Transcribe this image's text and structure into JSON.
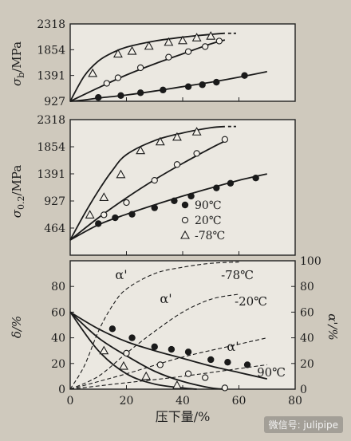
{
  "chart_data": [
    {
      "type": "line",
      "panel": "top",
      "ylabel": "σb/MPa",
      "ylabel_base": "σ",
      "ylabel_sub": "b",
      "ylabel_unit": "/MPa",
      "yticks": [
        927,
        1391,
        1854,
        2318
      ],
      "ylim": [
        927,
        2318
      ],
      "xlim": [
        0,
        80
      ],
      "series": [
        {
          "temp": "90℃",
          "marker": "filled-circle",
          "x": [
            0,
            5,
            10,
            20,
            30,
            40,
            50,
            60,
            70
          ],
          "y": [
            927,
            950,
            985,
            1040,
            1110,
            1190,
            1270,
            1360,
            1460
          ]
        },
        {
          "temp": "20℃",
          "marker": "open-circle",
          "x": [
            0,
            10,
            20,
            30,
            40,
            50,
            55
          ],
          "y": [
            927,
            1170,
            1400,
            1600,
            1780,
            1960,
            2030
          ]
        },
        {
          "temp": "-78℃",
          "marker": "triangle",
          "x": [
            0,
            5,
            10,
            15,
            20,
            30,
            40,
            50,
            55
          ],
          "y": [
            927,
            1380,
            1650,
            1800,
            1900,
            2010,
            2080,
            2130,
            2150
          ]
        }
      ],
      "markers": [
        {
          "marker": "filled-circle",
          "x": [
            10,
            18,
            25,
            33,
            42,
            47,
            52,
            62
          ],
          "y": [
            995,
            1030,
            1080,
            1130,
            1190,
            1225,
            1270,
            1390
          ]
        },
        {
          "marker": "open-circle",
          "x": [
            13,
            17,
            25,
            35,
            42,
            48,
            53
          ],
          "y": [
            1250,
            1350,
            1530,
            1720,
            1820,
            1910,
            2010
          ]
        },
        {
          "marker": "triangle",
          "x": [
            8,
            17,
            22,
            28,
            35,
            40,
            45,
            50
          ],
          "y": [
            1430,
            1780,
            1830,
            1920,
            1990,
            2020,
            2070,
            2100
          ]
        }
      ]
    },
    {
      "type": "line",
      "panel": "middle",
      "ylabel": "σ0.2/MPa",
      "ylabel_base": "σ",
      "ylabel_sub": "0.2",
      "ylabel_unit": "/MPa",
      "yticks": [
        464,
        927,
        1391,
        1854,
        2318
      ],
      "ylim": [
        0,
        2318
      ],
      "xlim": [
        0,
        80
      ],
      "legend": [
        "90℃",
        "20℃",
        "-78℃"
      ],
      "series": [
        {
          "name": "90℃",
          "marker": "filled-circle",
          "x": [
            0,
            10,
            20,
            30,
            40,
            50,
            60,
            70
          ],
          "y": [
            260,
            520,
            700,
            860,
            1010,
            1150,
            1280,
            1390
          ]
        },
        {
          "name": "20℃",
          "marker": "open-circle",
          "x": [
            0,
            10,
            20,
            30,
            40,
            50,
            55
          ],
          "y": [
            260,
            640,
            980,
            1290,
            1570,
            1830,
            1950
          ]
        },
        {
          "name": "-78℃",
          "marker": "triangle",
          "x": [
            0,
            5,
            10,
            15,
            20,
            30,
            40,
            50,
            55
          ],
          "y": [
            260,
            700,
            1100,
            1450,
            1720,
            1960,
            2090,
            2180,
            2200
          ]
        }
      ],
      "markers": [
        {
          "marker": "filled-circle",
          "x": [
            10,
            16,
            22,
            30,
            37,
            43,
            52,
            57,
            66
          ],
          "y": [
            540,
            640,
            700,
            810,
            930,
            1010,
            1150,
            1230,
            1320
          ]
        },
        {
          "marker": "open-circle",
          "x": [
            12,
            20,
            30,
            38,
            45,
            55
          ],
          "y": [
            690,
            900,
            1280,
            1550,
            1740,
            1980
          ]
        },
        {
          "marker": "triangle",
          "x": [
            7,
            12,
            18,
            25,
            32,
            38,
            45
          ],
          "y": [
            690,
            990,
            1380,
            1790,
            1940,
            2020,
            2110
          ]
        }
      ]
    },
    {
      "type": "line",
      "panel": "bottom",
      "xlabel": "压下量/%",
      "ylabel": "δ/%",
      "ylabel_right": "α'/%",
      "xticks": [
        0,
        20,
        40,
        60,
        80
      ],
      "yticks": [
        0,
        20,
        40,
        60,
        80
      ],
      "yticks_right": [
        0,
        20,
        40,
        60,
        80,
        100
      ],
      "xlim": [
        0,
        80
      ],
      "ylim": [
        0,
        100
      ],
      "ylim_right": [
        0,
        100
      ],
      "annotations": [
        "α'",
        "α'",
        "α'",
        "-78℃",
        "-20℃",
        "90℃"
      ],
      "series": [
        {
          "temp": "90℃",
          "quantity": "δ",
          "marker": "filled-circle",
          "x": [
            0,
            10,
            20,
            30,
            40,
            50,
            60,
            70
          ],
          "y": [
            60,
            47,
            37,
            30,
            24,
            18,
            13,
            8
          ]
        },
        {
          "temp": "20℃",
          "quantity": "δ",
          "marker": "open-circle",
          "x": [
            0,
            10,
            20,
            30,
            40,
            50,
            55
          ],
          "y": [
            60,
            40,
            26,
            14,
            6,
            1,
            0
          ]
        },
        {
          "temp": "-78℃",
          "quantity": "δ",
          "marker": "triangle",
          "x": [
            0,
            10,
            20,
            30,
            40,
            45
          ],
          "y": [
            60,
            30,
            12,
            4,
            1,
            0
          ]
        },
        {
          "temp": "-78℃",
          "quantity": "α'",
          "style": "dashed",
          "x": [
            0,
            5,
            10,
            15,
            20,
            30,
            40,
            50,
            60
          ],
          "y": [
            0,
            18,
            45,
            65,
            78,
            90,
            95,
            98,
            99
          ]
        },
        {
          "temp": "-20℃",
          "quantity": "α'",
          "style": "dashed",
          "x": [
            0,
            10,
            20,
            30,
            40,
            50,
            60
          ],
          "y": [
            0,
            10,
            28,
            45,
            60,
            70,
            74
          ]
        },
        {
          "temp": "20℃",
          "quantity": "α'",
          "style": "dashed",
          "x": [
            0,
            20,
            40,
            60,
            70
          ],
          "y": [
            0,
            12,
            25,
            35,
            40
          ]
        },
        {
          "temp": "90℃",
          "quantity": "α'",
          "style": "dashed",
          "x": [
            0,
            20,
            40,
            60,
            70
          ],
          "y": [
            0,
            5,
            10,
            16,
            19
          ]
        }
      ],
      "markers": [
        {
          "marker": "filled-circle",
          "x": [
            15,
            22,
            30,
            36,
            42,
            50,
            56,
            63
          ],
          "y": [
            47,
            40,
            33,
            31,
            29,
            23,
            21,
            19
          ]
        },
        {
          "marker": "open-circle",
          "x": [
            20,
            32,
            42,
            48,
            55
          ],
          "y": [
            28,
            19,
            12,
            9,
            1
          ]
        },
        {
          "marker": "triangle",
          "x": [
            12,
            19,
            27,
            38
          ],
          "y": [
            30,
            18,
            10,
            3
          ]
        }
      ]
    }
  ],
  "watermark": "微信号: julipipe"
}
